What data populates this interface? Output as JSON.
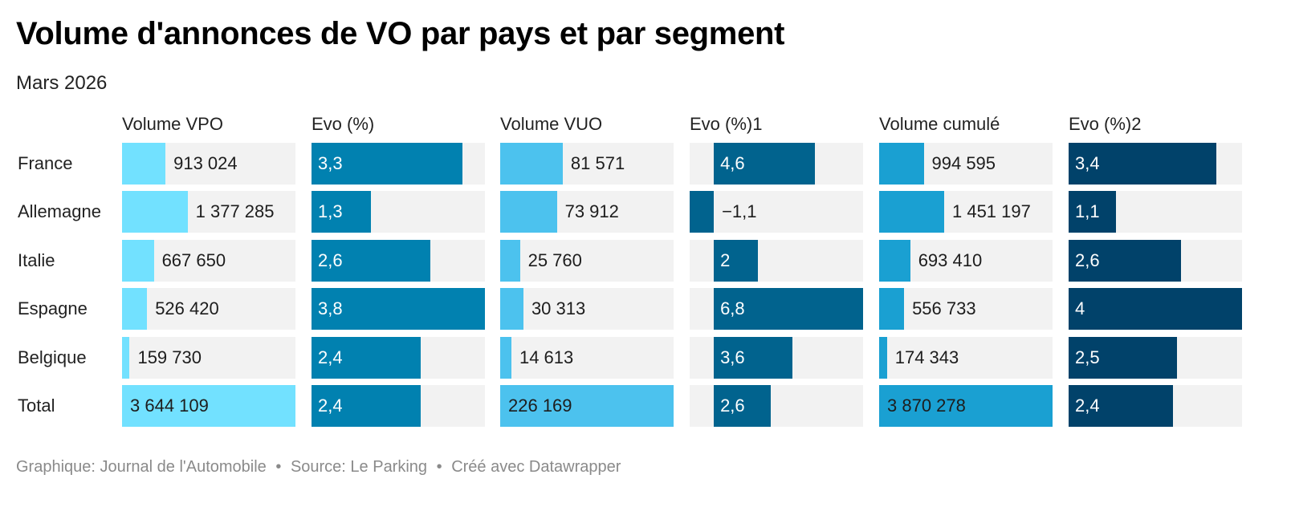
{
  "title": "Volume d'annonces de VO par pays et par segment",
  "subtitle": "Mars 2026",
  "footer": {
    "credit": "Graphique: Journal de l'Automobile",
    "source": "Source: Le Parking",
    "tool": "Créé avec Datawrapper",
    "separator": "•"
  },
  "chart_data": {
    "type": "table",
    "rows": [
      "France",
      "Allemagne",
      "Italie",
      "Espagne",
      "Belgique",
      "Total"
    ],
    "columns": [
      {
        "label": "Volume VPO",
        "kind": "volume",
        "color": "#72e1ff",
        "values": [
          913024,
          1377285,
          667650,
          526420,
          159730,
          3644109
        ],
        "display": [
          "913 024",
          "1 377 285",
          "667 650",
          "526 420",
          "159 730",
          "3 644 109"
        ]
      },
      {
        "label": "Evo (%)",
        "kind": "evo",
        "color": "#0181b0",
        "values": [
          3.3,
          1.3,
          2.6,
          3.8,
          2.4,
          2.4
        ],
        "display": [
          "3,3",
          "1,3",
          "2,6",
          "3,8",
          "2,4",
          "2,4"
        ]
      },
      {
        "label": "Volume VUO",
        "kind": "volume",
        "color": "#4cc2ee",
        "values": [
          81571,
          73912,
          25760,
          30313,
          14613,
          226169
        ],
        "display": [
          "81 571",
          "73 912",
          "25 760",
          "30 313",
          "14 613",
          "226 169"
        ]
      },
      {
        "label": "Evo (%)1",
        "kind": "evo",
        "color": "#01638e",
        "values": [
          4.6,
          -1.1,
          2,
          6.8,
          3.6,
          2.6
        ],
        "display": [
          "4,6",
          "−1,1",
          "2",
          "6,8",
          "3,6",
          "2,6"
        ]
      },
      {
        "label": "Volume cumulé",
        "kind": "volume",
        "color": "#1aa0d2",
        "values": [
          994595,
          1451197,
          693410,
          556733,
          174343,
          3870278
        ],
        "display": [
          "994 595",
          "1 451 197",
          "693 410",
          "556 733",
          "174 343",
          "3 870 278"
        ]
      },
      {
        "label": "Evo (%)2",
        "kind": "evo",
        "color": "#01426a",
        "values": [
          3.4,
          1.1,
          2.6,
          4,
          2.5,
          2.4
        ],
        "display": [
          "3,4",
          "1,1",
          "2,6",
          "4",
          "2,5",
          "2,4"
        ]
      }
    ]
  }
}
